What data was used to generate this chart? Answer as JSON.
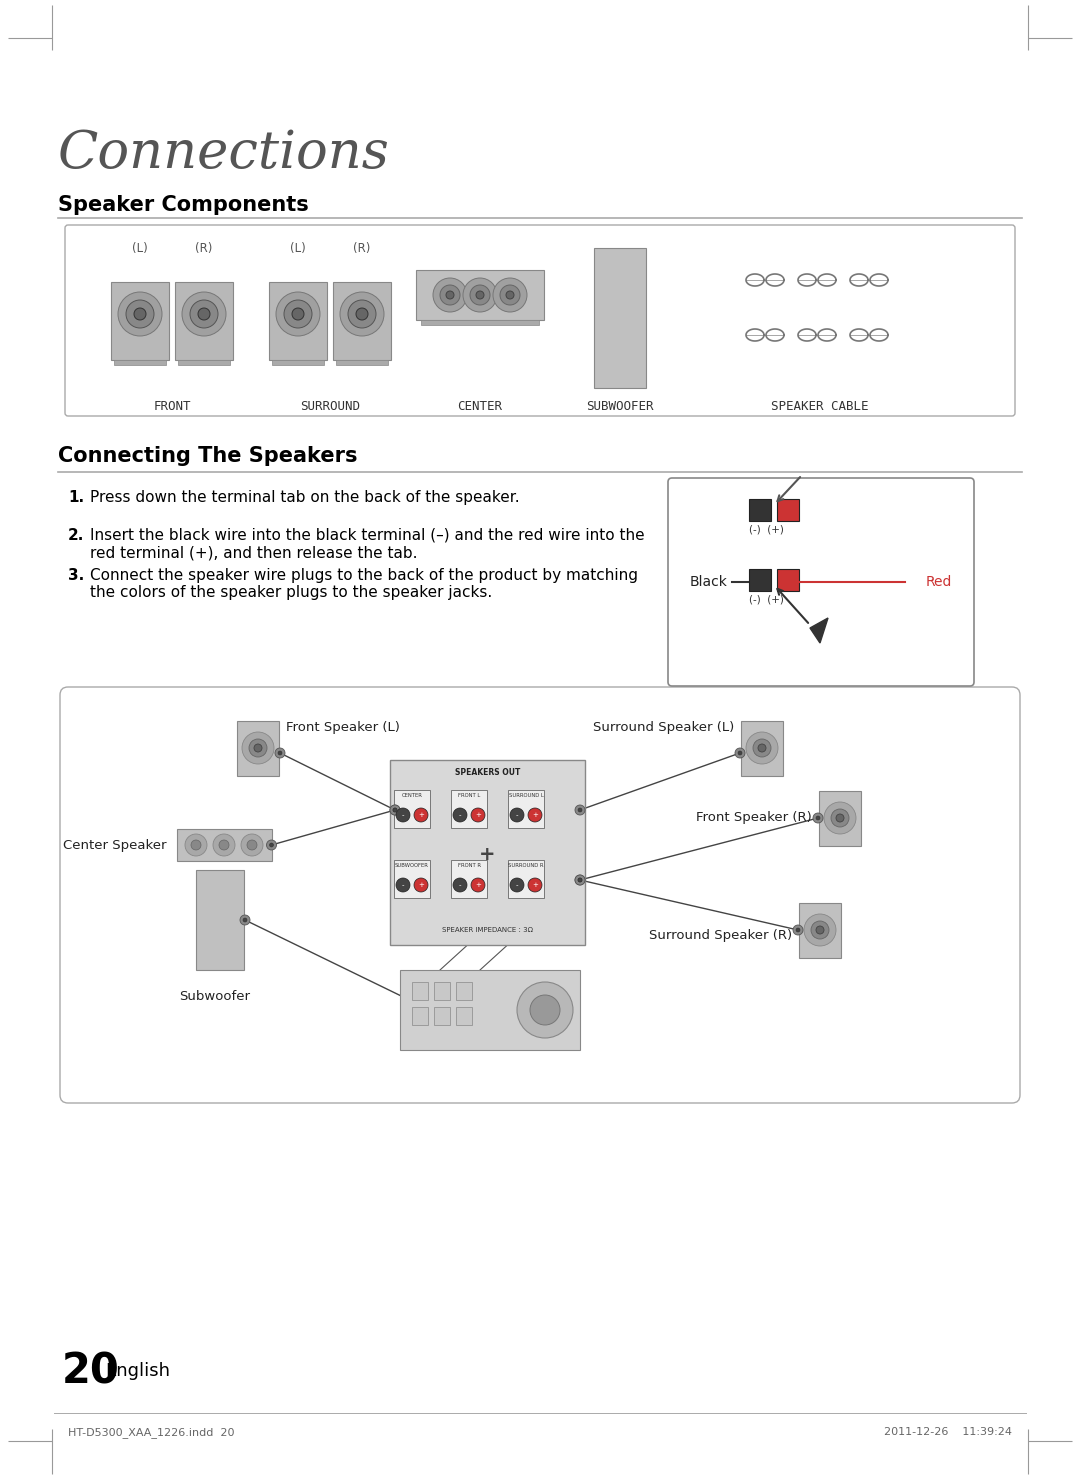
{
  "page_title": "Connections",
  "section1_title": "Speaker Components",
  "section2_title": "Connecting The Speakers",
  "instructions": [
    "Press down the terminal tab on the back of the speaker.",
    "Insert the black wire into the black terminal (–) and the red wire into the\nred terminal (+), and then release the tab.",
    "Connect the speaker wire plugs to the back of the product by matching\nthe colors of the speaker plugs to the speaker jacks."
  ],
  "speaker_labels": [
    "FRONT",
    "SURROUND",
    "CENTER",
    "SUBWOOFER",
    "SPEAKER CABLE"
  ],
  "diagram_labels": {
    "front_l": "Front Speaker (L)",
    "front_r": "Front Speaker (R)",
    "surround_l": "Surround Speaker (L)",
    "surround_r": "Surround Speaker (R)",
    "center": "Center Speaker",
    "subwoofer": "Subwoofer"
  },
  "black_label": "Black",
  "red_label": "Red",
  "page_number": "20",
  "page_lang": "English",
  "footer_left": "HT-D5300_XAA_1226.indd  20",
  "footer_right": "2011-12-26    11:39:24",
  "bg_color": "#ffffff",
  "text_color": "#000000"
}
